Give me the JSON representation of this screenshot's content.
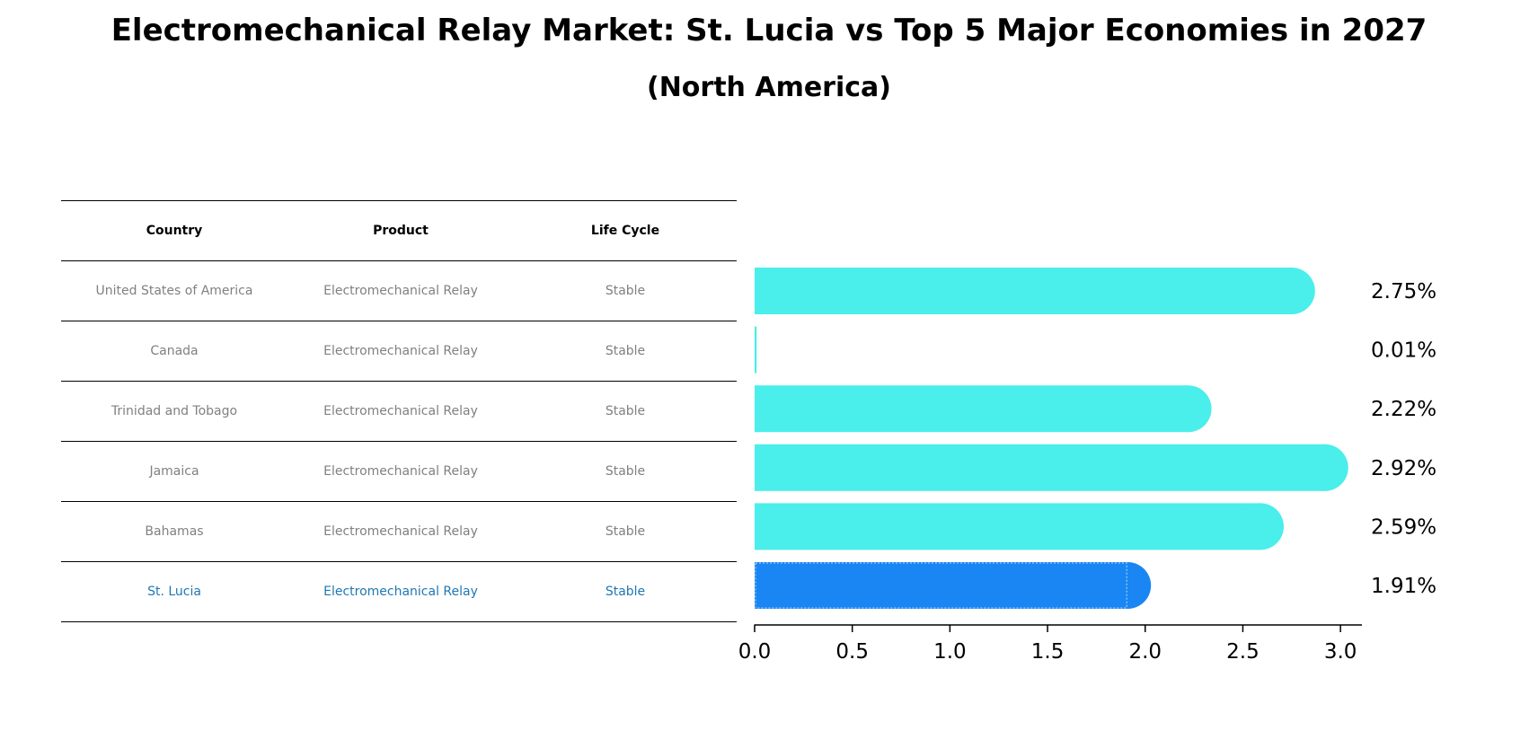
{
  "title": "Electromechanical Relay Market: St. Lucia vs Top 5 Major Economies in 2027",
  "subtitle": "(North America)",
  "table": {
    "headers": [
      "Country",
      "Product",
      "Life Cycle"
    ],
    "rows": [
      [
        "United States of America",
        "Electromechanical Relay",
        "Stable"
      ],
      [
        "Canada",
        "Electromechanical Relay",
        "Stable"
      ],
      [
        "Trinidad and Tobago",
        "Electromechanical Relay",
        "Stable"
      ],
      [
        "Jamaica",
        "Electromechanical Relay",
        "Stable"
      ],
      [
        "Bahamas",
        "Electromechanical Relay",
        "Stable"
      ],
      [
        "St. Lucia",
        "Electromechanical Relay",
        "Stable"
      ]
    ],
    "highlight_index": 5,
    "highlight_color": "#1f77b4",
    "text_color": "#808080"
  },
  "chart_data": {
    "type": "bar",
    "orientation": "horizontal",
    "categories": [
      "United States of America",
      "Canada",
      "Trinidad and Tobago",
      "Jamaica",
      "Bahamas",
      "St. Lucia"
    ],
    "values": [
      2.75,
      0.01,
      2.22,
      2.92,
      2.59,
      1.91
    ],
    "value_labels": [
      "2.75%",
      "0.01%",
      "2.22%",
      "2.92%",
      "2.59%",
      "1.91%"
    ],
    "xlim": [
      0,
      3.05
    ],
    "xticks": [
      0.0,
      0.5,
      1.0,
      1.5,
      2.0,
      2.5,
      3.0
    ],
    "xtick_labels": [
      "0.0",
      "0.5",
      "1.0",
      "1.5",
      "2.0",
      "2.5",
      "3.0"
    ],
    "bar_color": "#4aeeea",
    "highlight_color": "#1a86f4",
    "highlight_index": 5,
    "unit": "%"
  }
}
